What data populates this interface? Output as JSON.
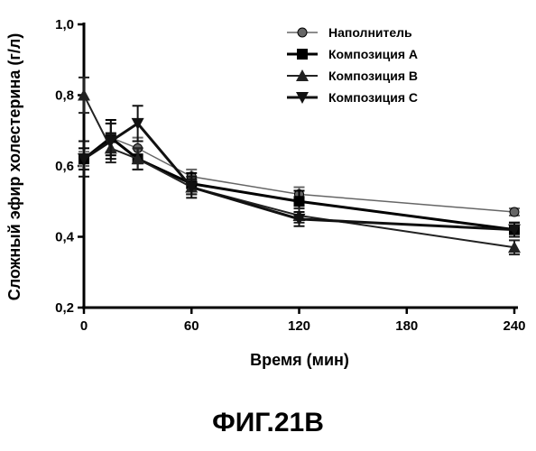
{
  "chart_data": {
    "type": "line",
    "x": [
      0,
      15,
      30,
      60,
      120,
      240
    ],
    "xlabel": "Время (мин)",
    "ylabel": "Сложный эфир холестерина (г/л)",
    "xlim": [
      0,
      240
    ],
    "ylim": [
      0.2,
      1.0
    ],
    "x_ticks": [
      0,
      60,
      120,
      180,
      240
    ],
    "y_ticks": [
      0.2,
      0.4,
      0.6,
      0.8,
      1.0
    ],
    "x_tick_labels": [
      "0",
      "60",
      "120",
      "180",
      "240"
    ],
    "y_tick_labels": [
      "0,2",
      "0,4",
      "0,6",
      "0,8",
      "1,0"
    ],
    "grid": false,
    "legend_position": "top-right",
    "series": [
      {
        "name": "Наполнитель",
        "marker": "circle",
        "values": [
          0.62,
          0.68,
          0.65,
          0.57,
          0.52,
          0.47
        ],
        "errors": [
          0.02,
          0.04,
          0.03,
          0.02,
          0.02,
          0.01
        ],
        "color": "#666666"
      },
      {
        "name": "Композиция A",
        "marker": "square",
        "values": [
          0.62,
          0.68,
          0.62,
          0.55,
          0.5,
          0.42
        ],
        "errors": [
          0.03,
          0.05,
          0.03,
          0.03,
          0.03,
          0.02
        ],
        "color": "#000000"
      },
      {
        "name": "Композиция B",
        "marker": "triangle-up",
        "values": [
          0.8,
          0.65,
          0.62,
          0.54,
          0.46,
          0.37
        ],
        "errors": [
          0.05,
          0.04,
          0.03,
          0.02,
          0.02,
          0.02
        ],
        "color": "#222222"
      },
      {
        "name": "Композиция C",
        "marker": "triangle-down",
        "values": [
          0.62,
          0.67,
          0.72,
          0.54,
          0.45,
          0.42
        ],
        "errors": [
          0.05,
          0.05,
          0.05,
          0.03,
          0.02,
          0.02
        ],
        "color": "#111111"
      }
    ]
  },
  "figure_caption": "ФИГ.21В"
}
